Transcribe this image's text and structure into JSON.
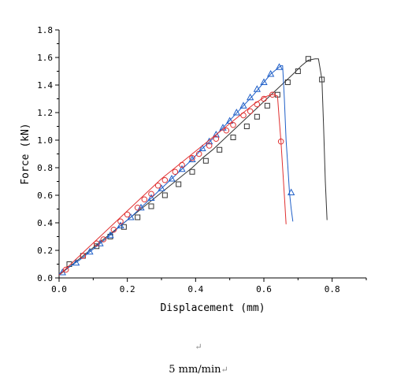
{
  "chart_data": {
    "type": "line",
    "xlabel": "Displacement (mm)",
    "ylabel": "Force (kN)",
    "xlim": [
      0,
      0.9
    ],
    "ylim": [
      0,
      1.8
    ],
    "xticks": [
      0.0,
      0.2,
      0.4,
      0.6,
      0.8
    ],
    "xtick_labels": [
      "0.0",
      "0.2",
      "0.4",
      "0.6",
      "0.8"
    ],
    "yticks": [
      0.0,
      0.2,
      0.4,
      0.6,
      0.8,
      1.0,
      1.2,
      1.4,
      1.6,
      1.8
    ],
    "ytick_labels": [
      "0.0",
      "0.2",
      "0.4",
      "0.6",
      "0.8",
      "1.0",
      "1.2",
      "1.4",
      "1.6",
      "1.8"
    ],
    "grid": false,
    "series": [
      {
        "color": "#333333",
        "marker": "square",
        "x": [
          0.0,
          0.03,
          0.06,
          0.09,
          0.12,
          0.15,
          0.18,
          0.21,
          0.24,
          0.27,
          0.3,
          0.33,
          0.36,
          0.39,
          0.42,
          0.45,
          0.48,
          0.51,
          0.54,
          0.57,
          0.6,
          0.63,
          0.66,
          0.69,
          0.71,
          0.73,
          0.75,
          0.76,
          0.77,
          0.775,
          0.78,
          0.785
        ],
        "y": [
          0.02,
          0.08,
          0.14,
          0.2,
          0.26,
          0.32,
          0.38,
          0.44,
          0.5,
          0.56,
          0.62,
          0.68,
          0.74,
          0.8,
          0.87,
          0.93,
          1.0,
          1.07,
          1.14,
          1.21,
          1.28,
          1.35,
          1.42,
          1.49,
          1.54,
          1.58,
          1.59,
          1.59,
          1.44,
          1.1,
          0.7,
          0.42
        ],
        "marker_x": [
          0.03,
          0.07,
          0.11,
          0.15,
          0.19,
          0.23,
          0.27,
          0.31,
          0.35,
          0.39,
          0.43,
          0.47,
          0.51,
          0.55,
          0.58,
          0.61,
          0.64,
          0.67,
          0.7,
          0.73,
          0.77
        ],
        "marker_y": [
          0.1,
          0.16,
          0.23,
          0.3,
          0.37,
          0.44,
          0.52,
          0.6,
          0.68,
          0.77,
          0.85,
          0.93,
          1.02,
          1.1,
          1.17,
          1.25,
          1.33,
          1.42,
          1.5,
          1.59,
          1.44
        ]
      },
      {
        "color": "#1f5fc8",
        "marker": "triangle",
        "x": [
          0.0,
          0.03,
          0.06,
          0.09,
          0.12,
          0.15,
          0.18,
          0.21,
          0.24,
          0.27,
          0.3,
          0.33,
          0.36,
          0.39,
          0.42,
          0.45,
          0.48,
          0.51,
          0.54,
          0.57,
          0.6,
          0.62,
          0.64,
          0.65,
          0.655,
          0.66,
          0.665,
          0.67,
          0.675,
          0.68,
          0.685
        ],
        "y": [
          0.03,
          0.08,
          0.13,
          0.19,
          0.25,
          0.31,
          0.38,
          0.44,
          0.51,
          0.58,
          0.65,
          0.72,
          0.79,
          0.86,
          0.94,
          1.01,
          1.09,
          1.17,
          1.25,
          1.33,
          1.42,
          1.48,
          1.52,
          1.54,
          1.54,
          1.3,
          1.0,
          0.82,
          0.62,
          0.5,
          0.41
        ],
        "marker_x": [
          0.01,
          0.05,
          0.09,
          0.12,
          0.15,
          0.18,
          0.21,
          0.24,
          0.27,
          0.3,
          0.33,
          0.36,
          0.39,
          0.42,
          0.44,
          0.46,
          0.48,
          0.5,
          0.52,
          0.54,
          0.56,
          0.58,
          0.6,
          0.62,
          0.645,
          0.68
        ],
        "marker_y": [
          0.04,
          0.11,
          0.19,
          0.25,
          0.31,
          0.38,
          0.44,
          0.51,
          0.58,
          0.65,
          0.72,
          0.79,
          0.86,
          0.94,
          0.99,
          1.04,
          1.09,
          1.14,
          1.2,
          1.25,
          1.31,
          1.37,
          1.42,
          1.48,
          1.53,
          0.62
        ]
      },
      {
        "color": "#e03030",
        "marker": "circle",
        "x": [
          0.0,
          0.03,
          0.06,
          0.09,
          0.12,
          0.15,
          0.18,
          0.21,
          0.24,
          0.27,
          0.3,
          0.33,
          0.36,
          0.39,
          0.42,
          0.45,
          0.48,
          0.51,
          0.54,
          0.57,
          0.6,
          0.62,
          0.63,
          0.64,
          0.645,
          0.65,
          0.655,
          0.66,
          0.665
        ],
        "y": [
          0.02,
          0.09,
          0.16,
          0.23,
          0.3,
          0.37,
          0.44,
          0.51,
          0.58,
          0.65,
          0.72,
          0.78,
          0.84,
          0.9,
          0.96,
          1.02,
          1.08,
          1.14,
          1.2,
          1.26,
          1.31,
          1.33,
          1.33,
          1.32,
          1.15,
          0.99,
          0.8,
          0.6,
          0.39
        ],
        "marker_x": [
          0.02,
          0.07,
          0.11,
          0.13,
          0.16,
          0.18,
          0.2,
          0.23,
          0.25,
          0.27,
          0.29,
          0.31,
          0.34,
          0.36,
          0.39,
          0.41,
          0.44,
          0.46,
          0.49,
          0.51,
          0.54,
          0.56,
          0.58,
          0.6,
          0.625,
          0.65
        ],
        "marker_y": [
          0.06,
          0.16,
          0.25,
          0.28,
          0.35,
          0.41,
          0.46,
          0.51,
          0.57,
          0.61,
          0.67,
          0.71,
          0.77,
          0.82,
          0.87,
          0.9,
          0.96,
          1.01,
          1.07,
          1.11,
          1.18,
          1.21,
          1.26,
          1.3,
          1.33,
          0.99
        ]
      }
    ]
  },
  "caption": {
    "return_mark": "↵",
    "text": "5 mm/min",
    "trailing_mark": "↵"
  }
}
